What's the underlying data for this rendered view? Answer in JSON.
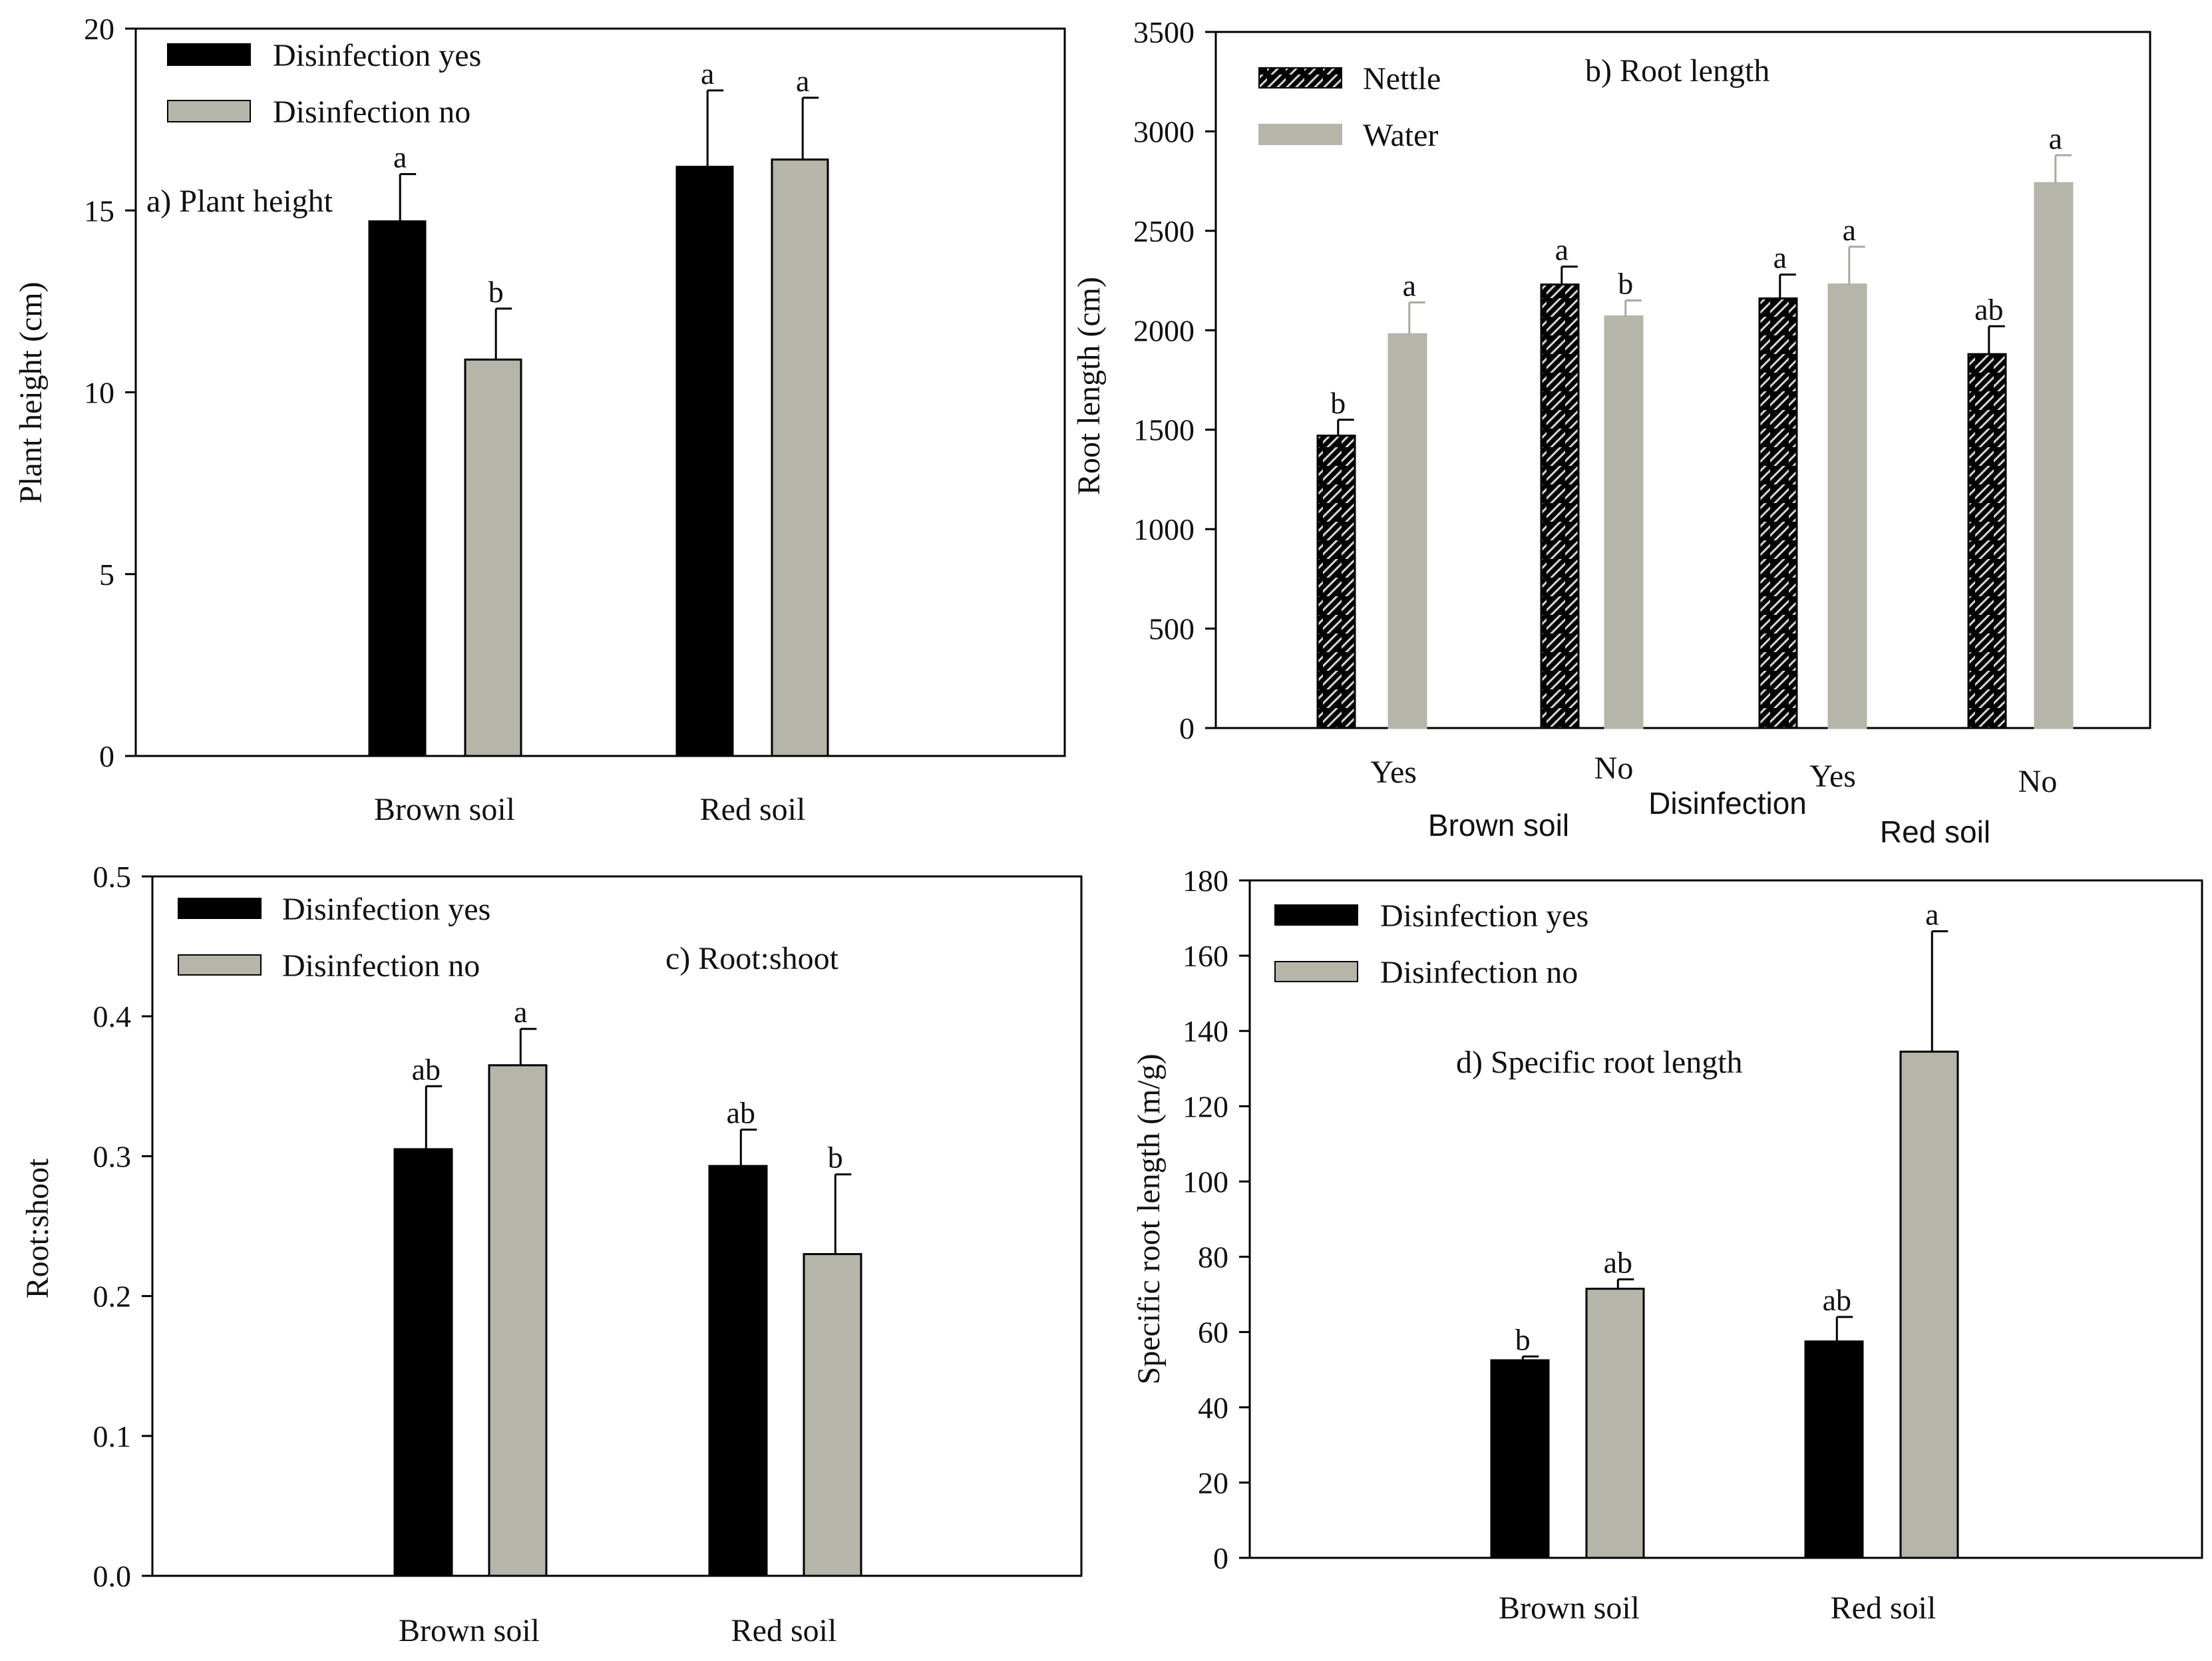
{
  "colors": {
    "primary_bar": "#000000",
    "secondary_bar": "#b5b5a9",
    "axis": "#000000",
    "background": "#ffffff"
  },
  "chart_data": [
    {
      "id": "a",
      "type": "bar",
      "title": "a) Plant height",
      "ylabel": "Plant height (cm)",
      "xlabel": "",
      "ylim": [
        0,
        20
      ],
      "yticks": [
        0,
        5,
        10,
        15,
        20
      ],
      "ytick_labels": [
        "0",
        "5",
        "10",
        "15",
        "20"
      ],
      "categories": [
        "Brown soil",
        "Red soil"
      ],
      "series": [
        {
          "name": "Disinfection yes",
          "values": [
            14.7,
            16.2
          ],
          "errors": [
            1.3,
            2.1
          ],
          "letters": [
            "a",
            "a"
          ]
        },
        {
          "name": "Disinfection no",
          "values": [
            10.9,
            16.4
          ],
          "errors": [
            1.4,
            1.7
          ],
          "letters": [
            "b",
            "a"
          ]
        }
      ],
      "legend": "top-left",
      "grid": false
    },
    {
      "id": "b",
      "type": "bar",
      "title": "b) Root length",
      "ylabel": "Root length (cm)",
      "xlabel": "Disinfection",
      "group_labels": [
        "Brown soil",
        "Red soil"
      ],
      "ylim": [
        0,
        3500
      ],
      "yticks": [
        0,
        500,
        1000,
        1500,
        2000,
        2500,
        3000,
        3500
      ],
      "ytick_labels": [
        "0",
        "500",
        "1000",
        "1500",
        "2000",
        "2500",
        "3000",
        "3500"
      ],
      "categories": [
        "Yes",
        "No",
        "Yes",
        "No"
      ],
      "series": [
        {
          "name": "Nettle",
          "values": [
            1470,
            2230,
            2160,
            1880
          ],
          "errors": [
            80,
            90,
            120,
            140
          ],
          "letters": [
            "b",
            "a",
            "a",
            "ab"
          ]
        },
        {
          "name": "Water",
          "values": [
            1980,
            2070,
            2230,
            2740
          ],
          "errors": [
            160,
            80,
            190,
            140
          ],
          "letters": [
            "a",
            "b",
            "a",
            "a"
          ]
        }
      ],
      "legend": "top-left",
      "grid": false
    },
    {
      "id": "c",
      "type": "bar",
      "title": "c) Root:shoot",
      "ylabel": "Root:shoot",
      "xlabel": "",
      "ylim": [
        0,
        0.5
      ],
      "yticks": [
        0,
        0.1,
        0.2,
        0.3,
        0.4,
        0.5
      ],
      "ytick_labels": [
        "0.0",
        "0.1",
        "0.2",
        "0.3",
        "0.4",
        "0.5"
      ],
      "categories": [
        "Brown soil",
        "Red soil"
      ],
      "series": [
        {
          "name": "Disinfection yes",
          "values": [
            0.305,
            0.293
          ],
          "errors": [
            0.045,
            0.026
          ],
          "letters": [
            "ab",
            "ab"
          ]
        },
        {
          "name": "Disinfection no",
          "values": [
            0.365,
            0.23
          ],
          "errors": [
            0.026,
            0.057
          ],
          "letters": [
            "a",
            "b"
          ]
        }
      ],
      "legend": "top-left",
      "grid": false
    },
    {
      "id": "d",
      "type": "bar",
      "title": "d) Specific root length",
      "ylabel": "Specific root length (m/g)",
      "xlabel": "",
      "ylim": [
        0,
        180
      ],
      "yticks": [
        0,
        20,
        40,
        60,
        80,
        100,
        120,
        140,
        160,
        180
      ],
      "ytick_labels": [
        "0",
        "20",
        "40",
        "60",
        "80",
        "100",
        "120",
        "140",
        "160",
        "180"
      ],
      "categories": [
        "Brown soil",
        "Red soil"
      ],
      "series": [
        {
          "name": "Disinfection yes",
          "values": [
            52.5,
            57.5
          ],
          "errors": [
            1.0,
            6.5
          ],
          "letters": [
            "b",
            "ab"
          ]
        },
        {
          "name": "Disinfection no",
          "values": [
            71.5,
            134.5
          ],
          "errors": [
            2.5,
            32.0
          ],
          "letters": [
            "ab",
            "a"
          ]
        }
      ],
      "legend": "top-left",
      "grid": false
    }
  ]
}
